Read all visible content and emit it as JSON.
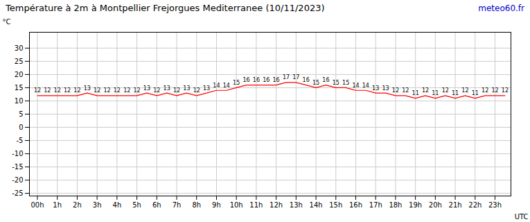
{
  "chart_data": {
    "type": "line",
    "title": "Température à 2m à Montpellier Frejorgues Mediterranee (10/11/2023)",
    "xlabel": "UTC",
    "ylabel": "°C",
    "annotations": [
      {
        "text": "meteo60.fr",
        "color": "#0000cc"
      }
    ],
    "x": [
      0.0,
      0.5,
      1.0,
      1.5,
      2.0,
      2.5,
      3.0,
      3.5,
      4.0,
      4.5,
      5.0,
      5.5,
      6.0,
      6.5,
      7.0,
      7.5,
      8.0,
      8.5,
      9.0,
      9.5,
      10.0,
      10.5,
      11.0,
      11.5,
      12.0,
      12.5,
      13.0,
      13.5,
      14.0,
      14.5,
      15.0,
      15.5,
      16.0,
      16.5,
      17.0,
      17.5,
      18.0,
      18.5,
      19.0,
      19.5,
      20.0,
      20.5,
      21.0,
      21.5,
      22.0,
      22.5,
      23.0,
      23.5
    ],
    "values": [
      12,
      12,
      12,
      12,
      12,
      13,
      12,
      12,
      12,
      12,
      12,
      13,
      12,
      13,
      12,
      13,
      12,
      13,
      14,
      14,
      15,
      16,
      16,
      16,
      16,
      17,
      17,
      16,
      15,
      16,
      15,
      15,
      14,
      14,
      13,
      13,
      12,
      12,
      11,
      12,
      11,
      12,
      11,
      12,
      11,
      12,
      12,
      12
    ],
    "color": "#ff0000",
    "xlim": [
      -0.4,
      23.8
    ],
    "xticks": [
      {
        "value": 0,
        "label": "00h"
      },
      {
        "value": 1,
        "label": "1h"
      },
      {
        "value": 2,
        "label": "2h"
      },
      {
        "value": 3,
        "label": "3h"
      },
      {
        "value": 4,
        "label": "4h"
      },
      {
        "value": 5,
        "label": "5h"
      },
      {
        "value": 6,
        "label": "6h"
      },
      {
        "value": 7,
        "label": "7h"
      },
      {
        "value": 8,
        "label": "8h"
      },
      {
        "value": 9,
        "label": "9h"
      },
      {
        "value": 10,
        "label": "10h"
      },
      {
        "value": 11,
        "label": "11h"
      },
      {
        "value": 12,
        "label": "12h"
      },
      {
        "value": 13,
        "label": "13h"
      },
      {
        "value": 14,
        "label": "14h"
      },
      {
        "value": 15,
        "label": "15h"
      },
      {
        "value": 16,
        "label": "16h"
      },
      {
        "value": 17,
        "label": "17h"
      },
      {
        "value": 18,
        "label": "18h"
      },
      {
        "value": 19,
        "label": "19h"
      },
      {
        "value": 20,
        "label": "20h"
      },
      {
        "value": 21,
        "label": "21h"
      },
      {
        "value": 22,
        "label": "22h"
      },
      {
        "value": 23,
        "label": "23h"
      }
    ],
    "ylim": [
      -26,
      36
    ],
    "yticks": [
      -25,
      -20,
      -15,
      -10,
      -5,
      0,
      5,
      10,
      15,
      20,
      25,
      30
    ],
    "grid": true,
    "data_labels": true
  }
}
